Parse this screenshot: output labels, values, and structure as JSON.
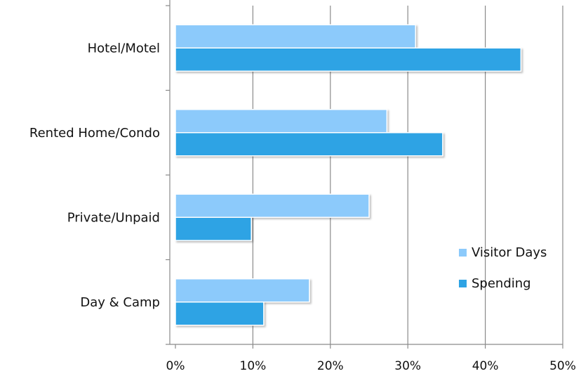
{
  "chart_data": {
    "type": "bar",
    "orientation": "horizontal",
    "categories": [
      "Hotel/Motel",
      "Rented Home/Condo",
      "Private/Unpaid",
      "Day & Camp"
    ],
    "series": [
      {
        "name": "Visitor Days",
        "color": "#8ccafb",
        "values": [
          31,
          27.3,
          25,
          17.3
        ]
      },
      {
        "name": "Spending",
        "color": "#2ea3e4",
        "values": [
          44.6,
          34.5,
          9.8,
          11.4
        ]
      }
    ],
    "xlim": [
      0,
      50
    ],
    "xticks": [
      "0%",
      "10%",
      "20%",
      "30%",
      "40%",
      "50%"
    ],
    "xtick_values": [
      0,
      10,
      20,
      30,
      40,
      50
    ],
    "grid": true,
    "legend_position": "right",
    "title": "",
    "xlabel": "",
    "ylabel": ""
  }
}
